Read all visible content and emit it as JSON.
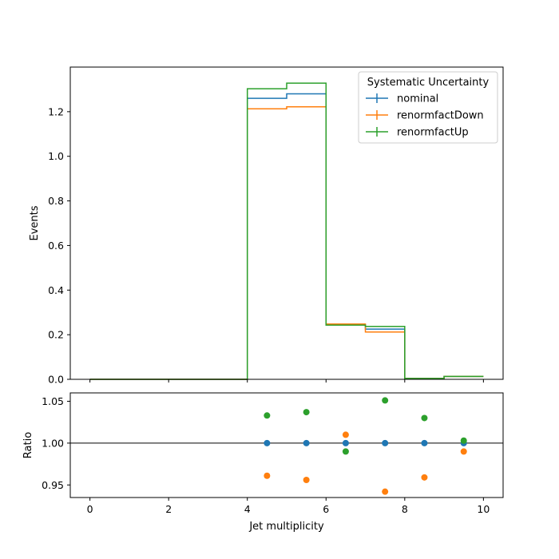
{
  "chart_data": [
    {
      "type": "step",
      "panel": "main",
      "xlabel": "",
      "ylabel": "Events",
      "xlim": [
        -0.5,
        10.5
      ],
      "ylim": [
        0,
        1.4
      ],
      "yticks": [
        0.0,
        0.2,
        0.4,
        0.6,
        0.8,
        1.0,
        1.2
      ],
      "ytick_labels": [
        "0.0",
        "0.2",
        "0.4",
        "0.6",
        "0.8",
        "1.0",
        "1.2"
      ],
      "xticks": [
        0,
        2,
        4,
        6,
        8,
        10
      ],
      "bin_edges": [
        0,
        1,
        2,
        3,
        4,
        5,
        6,
        7,
        8,
        9,
        10
      ],
      "legend": {
        "title": "Systematic Uncertainty",
        "position": "top-right"
      },
      "series": [
        {
          "name": "nominal",
          "color": "#1f77b4",
          "values": [
            0,
            0,
            0,
            0,
            1.26,
            1.28,
            0.245,
            0.225,
            0.004,
            0.013
          ]
        },
        {
          "name": "renormfactDown",
          "color": "#ff7f0e",
          "values": [
            0,
            0,
            0,
            0,
            1.213,
            1.222,
            0.248,
            0.212,
            0.004,
            0.013
          ]
        },
        {
          "name": "renormfactUp",
          "color": "#2ca02c",
          "values": [
            0,
            0,
            0,
            0,
            1.303,
            1.328,
            0.243,
            0.237,
            0.004,
            0.013
          ]
        }
      ]
    },
    {
      "type": "scatter",
      "panel": "ratio",
      "xlabel": "Jet multiplicity",
      "ylabel": "Ratio",
      "xlim": [
        -0.5,
        10.5
      ],
      "ylim": [
        0.935,
        1.06
      ],
      "yticks": [
        0.95,
        1.0,
        1.05
      ],
      "ytick_labels": [
        "0.95",
        "1.00",
        "1.05"
      ],
      "xticks": [
        0,
        2,
        4,
        6,
        8,
        10
      ],
      "xtick_labels": [
        "0",
        "2",
        "4",
        "6",
        "8",
        "10"
      ],
      "reference_line": 1.0,
      "x": [
        4.5,
        5.5,
        6.5,
        7.5,
        8.5,
        9.5
      ],
      "series": [
        {
          "name": "nominal",
          "color": "#1f77b4",
          "values": [
            1.0,
            1.0,
            1.0,
            1.0,
            1.0,
            1.0
          ]
        },
        {
          "name": "renormfactDown",
          "color": "#ff7f0e",
          "values": [
            0.961,
            0.956,
            1.01,
            0.942,
            0.959,
            0.99
          ]
        },
        {
          "name": "renormfactUp",
          "color": "#2ca02c",
          "values": [
            1.033,
            1.037,
            0.99,
            1.051,
            1.03,
            1.003
          ]
        }
      ]
    }
  ]
}
